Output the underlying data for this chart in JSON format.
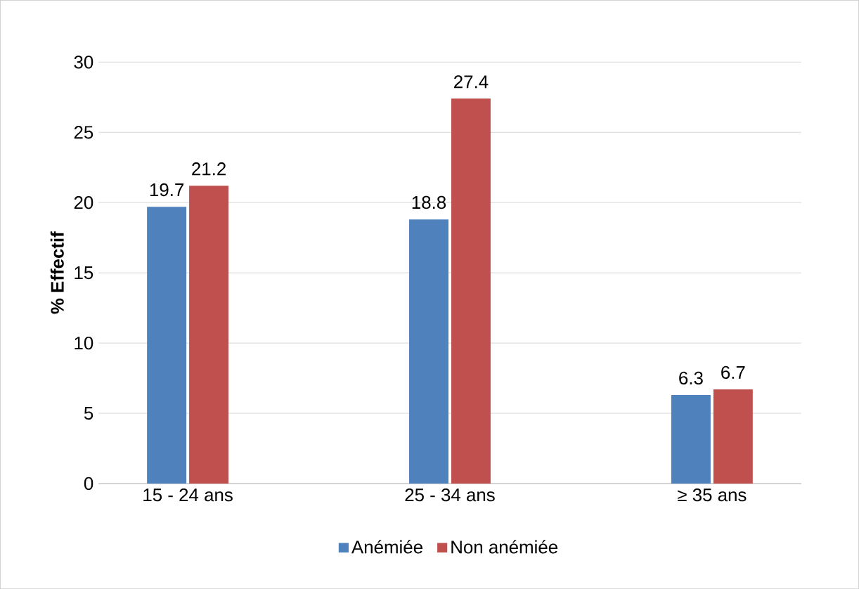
{
  "chart_data": {
    "type": "bar",
    "ylabel": "% Effectif",
    "categories": [
      "15 - 24 ans",
      "25 - 34 ans",
      "≥ 35 ans"
    ],
    "series": [
      {
        "name": "Anémiée",
        "color": "#4f81bd",
        "values": [
          19.7,
          18.8,
          6.3
        ]
      },
      {
        "name": "Non anémiée",
        "color": "#c0504d",
        "values": [
          21.2,
          27.4,
          6.7
        ]
      }
    ],
    "ylim": [
      0,
      30
    ],
    "yticks": [
      0,
      5,
      10,
      15,
      20,
      25,
      30
    ],
    "grid": "y",
    "legend": "bottom",
    "data_labels": true
  }
}
